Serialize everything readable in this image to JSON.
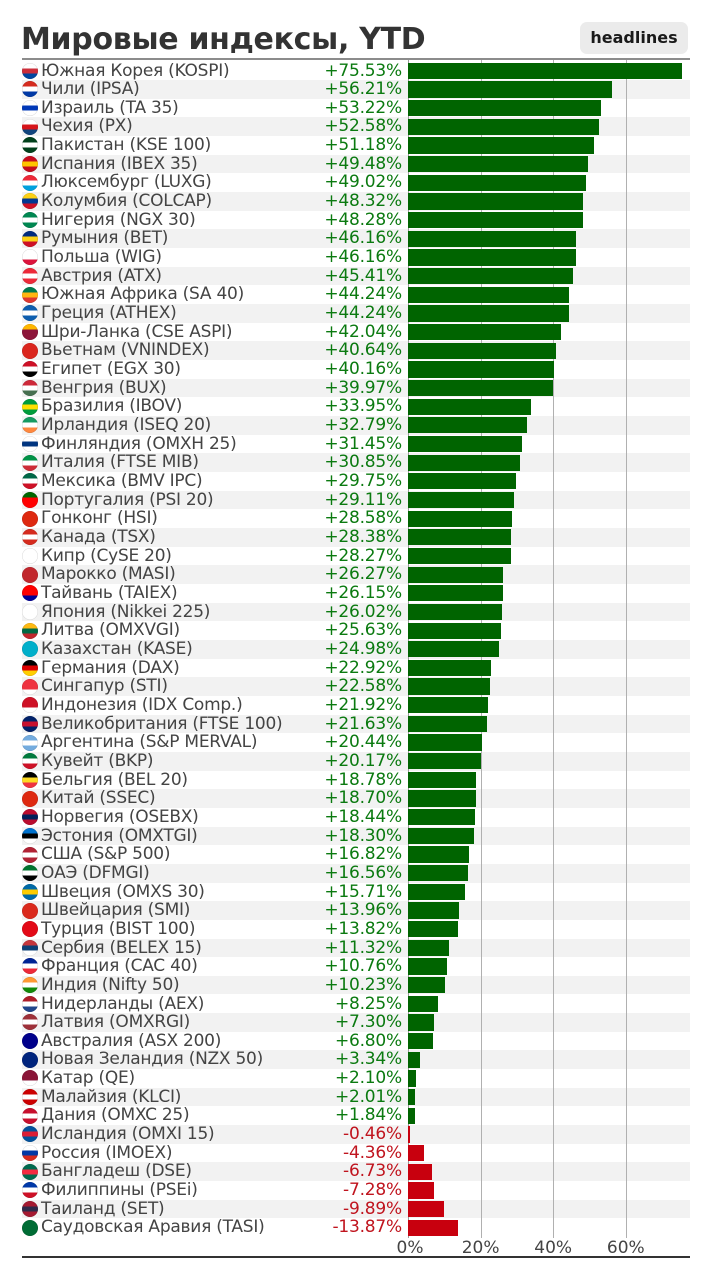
{
  "header": {
    "title": "Мировые индексы, YTD",
    "badge": "headlines"
  },
  "colors": {
    "positive_bar": "#006400",
    "negative_bar": "#c8000e",
    "positive_text": "#0b7a10",
    "negative_text": "#c0141e",
    "stripe": "#f2f2f2"
  },
  "chart_data": {
    "type": "bar",
    "orientation": "horizontal",
    "title": "Мировые индексы, YTD",
    "xlabel": "",
    "ylabel": "",
    "xlim": [
      0,
      76
    ],
    "xticks": [
      0,
      20,
      40,
      60
    ],
    "xtick_labels": [
      "0%",
      "20%",
      "40%",
      "60%"
    ],
    "bar_length": "absolute value",
    "grid": true,
    "categories": [
      "Южная Корея (KOSPI)",
      "Чили (IPSA)",
      "Израиль (TA 35)",
      "Чехия (PX)",
      "Пакистан (KSE 100)",
      "Испания (IBEX 35)",
      "Люксембург (LUXG)",
      "Колумбия (COLCAP)",
      "Нигерия (NGX 30)",
      "Румыния (BET)",
      "Польша (WIG)",
      "Австрия (ATX)",
      "Южная Африка (SA 40)",
      "Греция (ATHEX)",
      "Шри-Ланка (CSE ASPI)",
      "Вьетнам (VNINDEX)",
      "Египет (EGX 30)",
      "Венгрия (BUX)",
      "Бразилия (IBOV)",
      "Ирландия (ISEQ 20)",
      "Финляндия (OMXH 25)",
      "Италия (FTSE MIB)",
      "Мексика (BMV IPC)",
      "Португалия (PSI 20)",
      "Гонконг (HSI)",
      "Канада (TSX)",
      "Кипр (CySE 20)",
      "Марокко (MASI)",
      "Тайвань (TAIEX)",
      "Япония (Nikkei 225)",
      "Литва (OMXVGI)",
      "Казахстан (KASE)",
      "Германия (DAX)",
      "Сингапур (STI)",
      "Индонезия (IDX Comp.)",
      "Великобритания (FTSE 100)",
      "Аргентина (S&P MERVAL)",
      "Кувейт (BKP)",
      "Бельгия (BEL 20)",
      "Китай (SSEC)",
      "Норвегия (OSEBX)",
      "Эстония (OMXTGI)",
      "США (S&P 500)",
      "ОАЭ (DFMGI)",
      "Швеция (OMXS 30)",
      "Швейцария (SMI)",
      "Турция (BIST 100)",
      "Сербия (BELEX 15)",
      "Франция (CAC 40)",
      "Индия (Nifty 50)",
      "Нидерланды (AEX)",
      "Латвия (OMXRGI)",
      "Австралия (ASX 200)",
      "Новая Зеландия (NZX 50)",
      "Катар (QE)",
      "Малайзия (KLCI)",
      "Дания (OMXC 25)",
      "Исландия (OMXI 15)",
      "Россия (IMOEX)",
      "Бангладеш (DSE)",
      "Филиппины (PSEi)",
      "Таиланд (SET)",
      "Саудовская Аравия (TASI)"
    ],
    "values": [
      75.53,
      56.21,
      53.22,
      52.58,
      51.18,
      49.48,
      49.02,
      48.32,
      48.28,
      46.16,
      46.16,
      45.41,
      44.24,
      44.24,
      42.04,
      40.64,
      40.16,
      39.97,
      33.95,
      32.79,
      31.45,
      30.85,
      29.75,
      29.11,
      28.58,
      28.38,
      28.27,
      26.27,
      26.15,
      26.02,
      25.63,
      24.98,
      22.92,
      22.58,
      21.92,
      21.63,
      20.44,
      20.17,
      18.78,
      18.7,
      18.44,
      18.3,
      16.82,
      16.56,
      15.71,
      13.96,
      13.82,
      11.32,
      10.76,
      10.23,
      8.25,
      7.3,
      6.8,
      3.34,
      2.1,
      2.01,
      1.84,
      -0.46,
      -4.36,
      -6.73,
      -7.28,
      -9.89,
      -13.87
    ],
    "value_labels": [
      "+75.53%",
      "+56.21%",
      "+53.22%",
      "+52.58%",
      "+51.18%",
      "+49.48%",
      "+49.02%",
      "+48.32%",
      "+48.28%",
      "+46.16%",
      "+46.16%",
      "+45.41%",
      "+44.24%",
      "+44.24%",
      "+42.04%",
      "+40.64%",
      "+40.16%",
      "+39.97%",
      "+33.95%",
      "+32.79%",
      "+31.45%",
      "+30.85%",
      "+29.75%",
      "+29.11%",
      "+28.58%",
      "+28.38%",
      "+28.27%",
      "+26.27%",
      "+26.15%",
      "+26.02%",
      "+25.63%",
      "+24.98%",
      "+22.92%",
      "+22.58%",
      "+21.92%",
      "+21.63%",
      "+20.44%",
      "+20.17%",
      "+18.78%",
      "+18.70%",
      "+18.44%",
      "+18.30%",
      "+16.82%",
      "+16.56%",
      "+15.71%",
      "+13.96%",
      "+13.82%",
      "+11.32%",
      "+10.76%",
      "+10.23%",
      "+8.25%",
      "+7.30%",
      "+6.80%",
      "+3.34%",
      "+2.10%",
      "+2.01%",
      "+1.84%",
      "-0.46%",
      "-4.36%",
      "-6.73%",
      "-7.28%",
      "-9.89%",
      "-13.87%"
    ],
    "flag_icons": [
      "flag-south-korea-icon",
      "flag-chile-icon",
      "flag-israel-icon",
      "flag-czechia-icon",
      "flag-pakistan-icon",
      "flag-spain-icon",
      "flag-luxembourg-icon",
      "flag-colombia-icon",
      "flag-nigeria-icon",
      "flag-romania-icon",
      "flag-poland-icon",
      "flag-austria-icon",
      "flag-south-africa-icon",
      "flag-greece-icon",
      "flag-sri-lanka-icon",
      "flag-vietnam-icon",
      "flag-egypt-icon",
      "flag-hungary-icon",
      "flag-brazil-icon",
      "flag-ireland-icon",
      "flag-finland-icon",
      "flag-italy-icon",
      "flag-mexico-icon",
      "flag-portugal-icon",
      "flag-hong-kong-icon",
      "flag-canada-icon",
      "flag-cyprus-icon",
      "flag-morocco-icon",
      "flag-taiwan-icon",
      "flag-japan-icon",
      "flag-lithuania-icon",
      "flag-kazakhstan-icon",
      "flag-germany-icon",
      "flag-singapore-icon",
      "flag-indonesia-icon",
      "flag-uk-icon",
      "flag-argentina-icon",
      "flag-kuwait-icon",
      "flag-belgium-icon",
      "flag-china-icon",
      "flag-norway-icon",
      "flag-estonia-icon",
      "flag-usa-icon",
      "flag-uae-icon",
      "flag-sweden-icon",
      "flag-switzerland-icon",
      "flag-turkey-icon",
      "flag-serbia-icon",
      "flag-france-icon",
      "flag-india-icon",
      "flag-netherlands-icon",
      "flag-latvia-icon",
      "flag-australia-icon",
      "flag-new-zealand-icon",
      "flag-qatar-icon",
      "flag-malaysia-icon",
      "flag-denmark-icon",
      "flag-iceland-icon",
      "flag-russia-icon",
      "flag-bangladesh-icon",
      "flag-philippines-icon",
      "flag-thailand-icon",
      "flag-saudi-arabia-icon"
    ],
    "flag_colors": [
      [
        "#ffffff",
        "#cd2e3a",
        "#0047a0"
      ],
      [
        "#d52b1e",
        "#ffffff",
        "#0039a6"
      ],
      [
        "#ffffff",
        "#0038b8",
        "#ffffff"
      ],
      [
        "#ffffff",
        "#d7141a",
        "#11457e"
      ],
      [
        "#01411c",
        "#ffffff",
        "#01411c"
      ],
      [
        "#c60b1e",
        "#ffc400",
        "#c60b1e"
      ],
      [
        "#ed2939",
        "#ffffff",
        "#00a1de"
      ],
      [
        "#fcd116",
        "#003893",
        "#ce1126"
      ],
      [
        "#008751",
        "#ffffff",
        "#008751"
      ],
      [
        "#002b7f",
        "#fcd116",
        "#ce1126"
      ],
      [
        "#ffffff",
        "#ffffff",
        "#dc143c"
      ],
      [
        "#ed2939",
        "#ffffff",
        "#ed2939"
      ],
      [
        "#007a4d",
        "#ffb612",
        "#de3831"
      ],
      [
        "#0d5eaf",
        "#ffffff",
        "#0d5eaf"
      ],
      [
        "#ffb700",
        "#8d153a",
        "#8d153a"
      ],
      [
        "#da251d",
        "#da251d",
        "#da251d"
      ],
      [
        "#ce1126",
        "#ffffff",
        "#000000"
      ],
      [
        "#ce2939",
        "#ffffff",
        "#477050"
      ],
      [
        "#009c3b",
        "#ffdf00",
        "#009c3b"
      ],
      [
        "#169b62",
        "#ffffff",
        "#ff883e"
      ],
      [
        "#ffffff",
        "#003580",
        "#ffffff"
      ],
      [
        "#009246",
        "#ffffff",
        "#ce2b37"
      ],
      [
        "#006847",
        "#ffffff",
        "#ce1126"
      ],
      [
        "#006600",
        "#ff0000",
        "#ff0000"
      ],
      [
        "#de2910",
        "#de2910",
        "#de2910"
      ],
      [
        "#d52b1e",
        "#ffffff",
        "#d52b1e"
      ],
      [
        "#ffffff",
        "#ffffff",
        "#ffffff"
      ],
      [
        "#c1272d",
        "#c1272d",
        "#c1272d"
      ],
      [
        "#fe0000",
        "#fe0000",
        "#000095"
      ],
      [
        "#ffffff",
        "#ffffff",
        "#ffffff"
      ],
      [
        "#fdb913",
        "#006a44",
        "#c1272d"
      ],
      [
        "#00afca",
        "#00afca",
        "#00afca"
      ],
      [
        "#000000",
        "#dd0000",
        "#ffce00"
      ],
      [
        "#ef3340",
        "#ef3340",
        "#ffffff"
      ],
      [
        "#ce1126",
        "#ce1126",
        "#ffffff"
      ],
      [
        "#012169",
        "#c8102e",
        "#012169"
      ],
      [
        "#74acdf",
        "#ffffff",
        "#74acdf"
      ],
      [
        "#007a3d",
        "#ffffff",
        "#ce1126"
      ],
      [
        "#000000",
        "#fdda24",
        "#ef3340"
      ],
      [
        "#de2910",
        "#de2910",
        "#de2910"
      ],
      [
        "#ba0c2f",
        "#00205b",
        "#ba0c2f"
      ],
      [
        "#0072ce",
        "#000000",
        "#ffffff"
      ],
      [
        "#b22234",
        "#ffffff",
        "#b22234"
      ],
      [
        "#00732f",
        "#ffffff",
        "#000000"
      ],
      [
        "#006aa7",
        "#fecc00",
        "#006aa7"
      ],
      [
        "#da291c",
        "#da291c",
        "#da291c"
      ],
      [
        "#e30a17",
        "#e30a17",
        "#e30a17"
      ],
      [
        "#c6363c",
        "#0c4076",
        "#ffffff"
      ],
      [
        "#002395",
        "#ffffff",
        "#ed2939"
      ],
      [
        "#ff9933",
        "#ffffff",
        "#138808"
      ],
      [
        "#ae1c28",
        "#ffffff",
        "#21468b"
      ],
      [
        "#9e3039",
        "#ffffff",
        "#9e3039"
      ],
      [
        "#00008b",
        "#00008b",
        "#00008b"
      ],
      [
        "#00247d",
        "#00247d",
        "#00247d"
      ],
      [
        "#8a1538",
        "#8a1538",
        "#ffffff"
      ],
      [
        "#cc0001",
        "#ffffff",
        "#cc0001"
      ],
      [
        "#c8102e",
        "#ffffff",
        "#c8102e"
      ],
      [
        "#02529c",
        "#dc1e35",
        "#02529c"
      ],
      [
        "#ffffff",
        "#0039a6",
        "#d52b1e"
      ],
      [
        "#006a4e",
        "#f42a41",
        "#006a4e"
      ],
      [
        "#0038a8",
        "#ffffff",
        "#ce1126"
      ],
      [
        "#a51931",
        "#2d2a4a",
        "#a51931"
      ],
      [
        "#006c35",
        "#006c35",
        "#006c35"
      ]
    ]
  }
}
